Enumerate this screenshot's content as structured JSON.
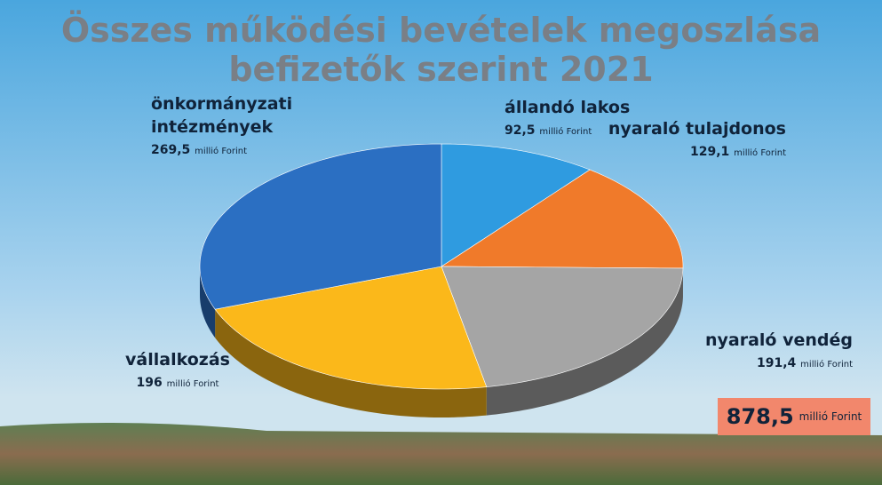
{
  "chart_data": {
    "type": "pie",
    "title": "Összes működési bevételek megoszlása befizetők szerint 2021",
    "categories": [
      "állandó lakos",
      "nyaraló tulajdonos",
      "nyaraló vendég",
      "vállalkozás",
      "önkormányzati intézmények"
    ],
    "values": [
      92.5,
      129.1,
      191.4,
      196,
      269.5
    ],
    "value_labels": [
      "92,5",
      "129,1",
      "191,4",
      "196",
      "269,5"
    ],
    "colors": [
      "#2f9be0",
      "#f07a2a",
      "#a5a5a5",
      "#fbb81a",
      "#2b6fc2"
    ],
    "unit": "millió Forint",
    "total": 878.5,
    "total_label": "878,5"
  }
}
